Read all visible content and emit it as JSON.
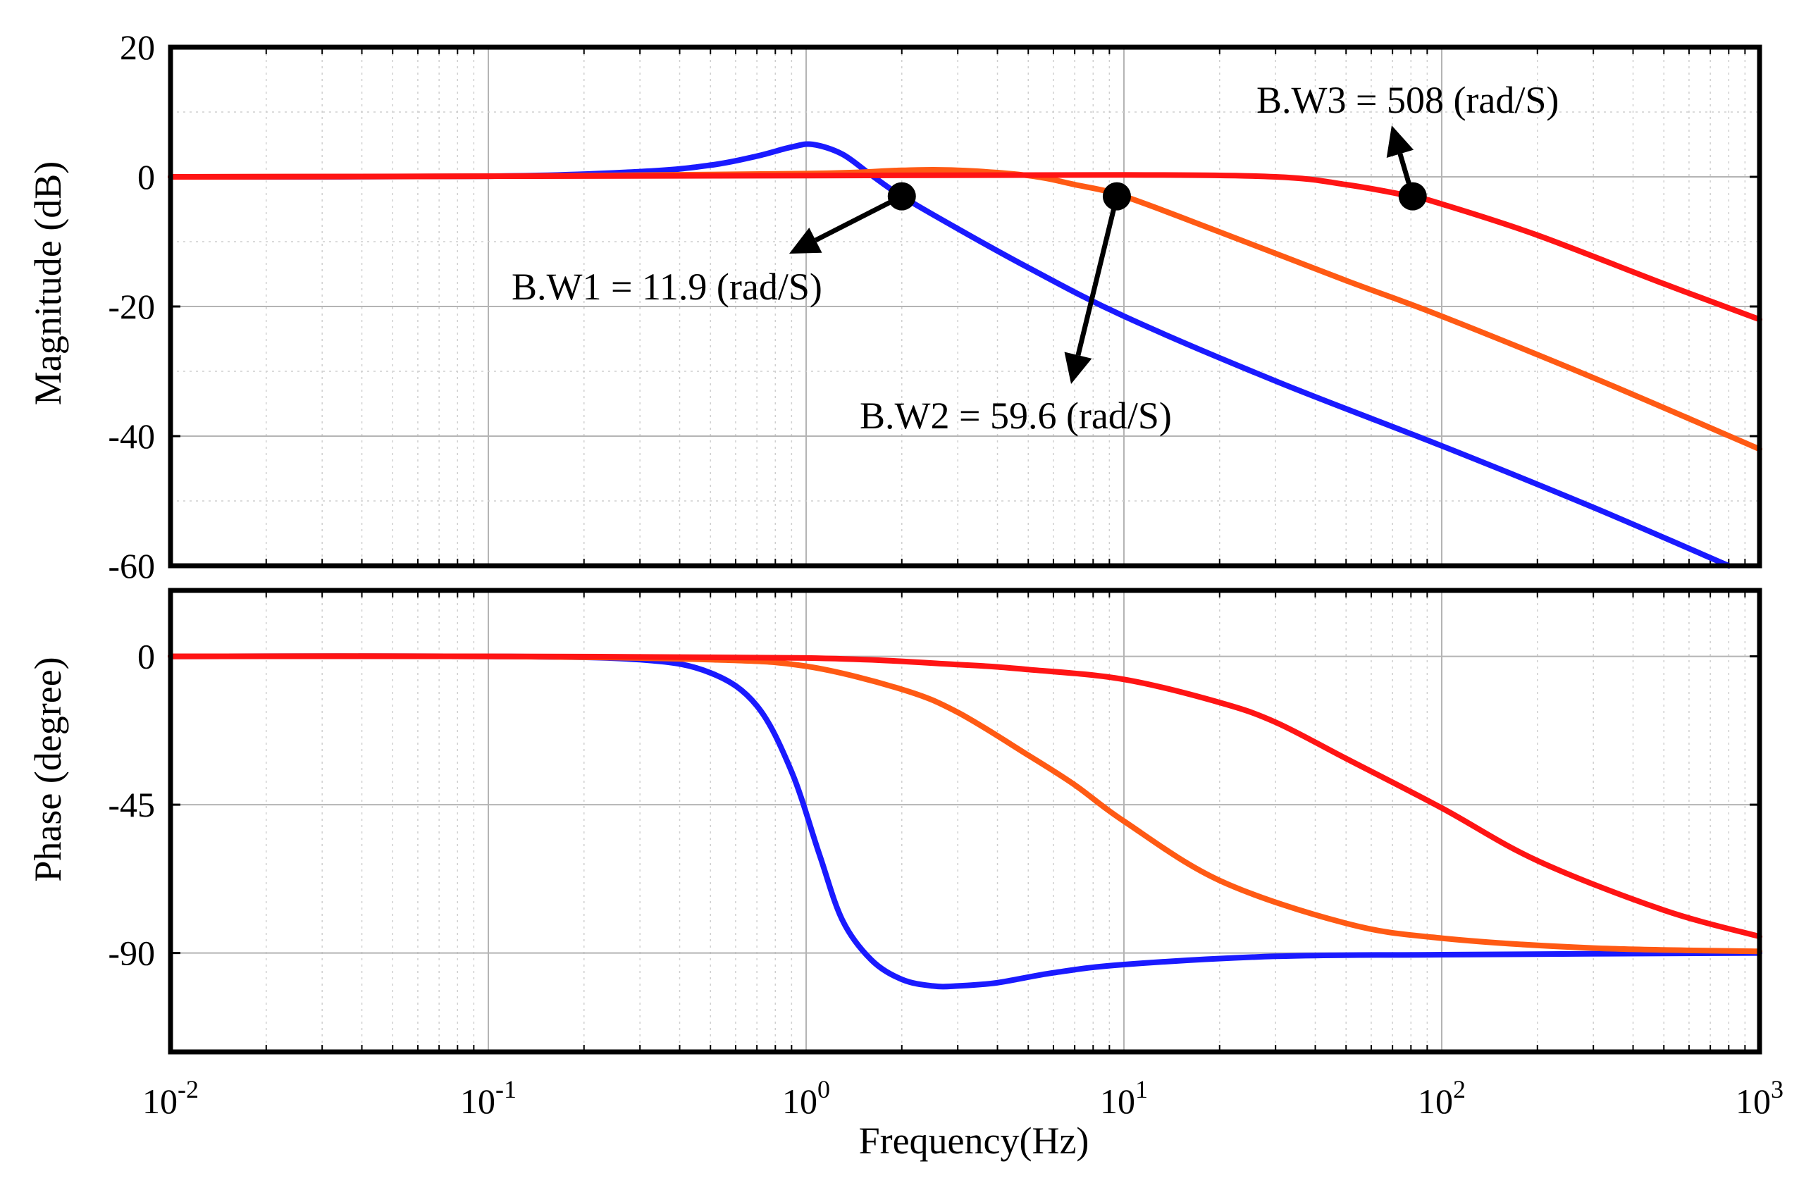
{
  "chart_data": {
    "type": "line",
    "xscale": "log",
    "xlim": [
      0.01,
      1000
    ],
    "xlabel": "Frequency(Hz)",
    "x_ticks": [
      {
        "base": "10",
        "exp": "-2"
      },
      {
        "base": "10",
        "exp": "-1"
      },
      {
        "base": "10",
        "exp": "0"
      },
      {
        "base": "10",
        "exp": "1"
      },
      {
        "base": "10",
        "exp": "2"
      },
      {
        "base": "10",
        "exp": "3"
      }
    ],
    "magnitude": {
      "ylabel": "Magnitude (dB)",
      "ylim": [
        -60,
        20
      ],
      "y_ticks": [
        "20",
        "0",
        "-20",
        "-40",
        "-60"
      ],
      "grid": true,
      "series": [
        {
          "name": "B.W1",
          "color": "#1a1aff",
          "x": [
            0.01,
            0.1,
            0.3,
            0.5,
            0.7,
            0.9,
            1.05,
            1.3,
            1.6,
            2.0,
            3.0,
            5.0,
            10,
            30,
            100,
            300,
            800
          ],
          "y": [
            0,
            0.1,
            0.8,
            1.8,
            3.2,
            4.6,
            5.0,
            3.5,
            0.3,
            -3.0,
            -8.0,
            -14.0,
            -21.5,
            -31.5,
            -41.5,
            -51,
            -60
          ]
        },
        {
          "name": "B.W2",
          "color": "#ff5a14",
          "x": [
            0.01,
            0.1,
            1.0,
            2.0,
            3.0,
            5.0,
            7.0,
            10,
            20,
            50,
            100,
            300,
            1000
          ],
          "y": [
            0,
            0.1,
            0.5,
            1.0,
            1.0,
            0.2,
            -1.2,
            -3.0,
            -8.5,
            -16,
            -21.5,
            -31,
            -42
          ]
        },
        {
          "name": "B.W3",
          "color": "#ff1414",
          "x": [
            0.01,
            1.0,
            10,
            30,
            50,
            80,
            100,
            200,
            500,
            1000
          ],
          "y": [
            0,
            0.2,
            0.3,
            0,
            -1.2,
            -3.0,
            -4.2,
            -9,
            -16.5,
            -22
          ]
        }
      ],
      "annotations": [
        {
          "text": "B.W1 = 11.9 (rad/S)",
          "marker_x": 2.0,
          "marker_y": -3
        },
        {
          "text": "B.W2 = 59.6 (rad/S)",
          "marker_x": 9.5,
          "marker_y": -3
        },
        {
          "text": "B.W3 = 508 (rad/S)",
          "marker_x": 81,
          "marker_y": -3
        }
      ]
    },
    "phase": {
      "ylabel": "Phase (degree)",
      "ylim": [
        -120,
        20
      ],
      "y_ticks": [
        "0",
        "-45",
        "-90"
      ],
      "grid": true,
      "series": [
        {
          "name": "B.W1",
          "color": "#1a1aff",
          "x": [
            0.01,
            0.1,
            0.3,
            0.5,
            0.7,
            0.9,
            1.1,
            1.3,
            1.6,
            2.0,
            2.5,
            3.0,
            4.0,
            6.0,
            10,
            30,
            100,
            1000
          ],
          "y": [
            0,
            0,
            -1,
            -5,
            -15,
            -35,
            -60,
            -80,
            -92,
            -98,
            -100,
            -100,
            -99,
            -96,
            -93.5,
            -91,
            -90.5,
            -90
          ]
        },
        {
          "name": "B.W2",
          "color": "#ff5a14",
          "x": [
            0.01,
            0.1,
            0.5,
            1.0,
            2.0,
            3.0,
            5.0,
            7.0,
            10,
            20,
            50,
            100,
            300,
            1000
          ],
          "y": [
            0,
            0,
            -1,
            -3,
            -10,
            -17,
            -30,
            -39,
            -50,
            -68,
            -81,
            -85.5,
            -88.5,
            -89.5
          ]
        },
        {
          "name": "B.W3",
          "color": "#ff1414",
          "x": [
            0.01,
            0.1,
            1.0,
            3.0,
            5.0,
            10,
            20,
            30,
            50,
            100,
            200,
            500,
            1000
          ],
          "y": [
            0,
            0,
            -0.5,
            -2.5,
            -4,
            -7,
            -14,
            -20,
            -31,
            -46,
            -62,
            -77,
            -85
          ]
        }
      ]
    }
  }
}
